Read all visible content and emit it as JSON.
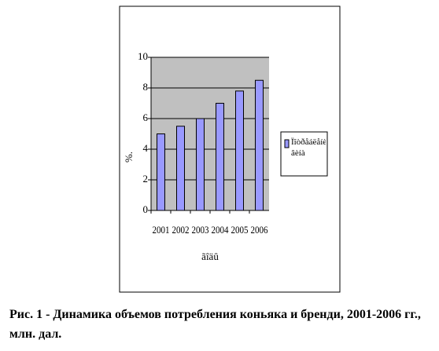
{
  "chart_data": {
    "type": "bar",
    "categories": [
      "2001",
      "2002",
      "2003",
      "2004",
      "2005",
      "2006"
    ],
    "series": [
      {
        "name": "Ïîòðåáëåíèå âèíà",
        "color": "#9999ff",
        "values": [
          5,
          5.5,
          6,
          7,
          7.8,
          8.5
        ]
      }
    ],
    "ylim": [
      0,
      10
    ],
    "yticks": [
      0,
      2,
      4,
      6,
      8,
      10
    ],
    "grid": true,
    "ylabel": "%.",
    "xlabel": "ãîäû",
    "legend": "right"
  },
  "caption": "Рис. 1 - Динамика объемов потребления коньяка и бренди, 2001-2006 гг., млн. дал."
}
